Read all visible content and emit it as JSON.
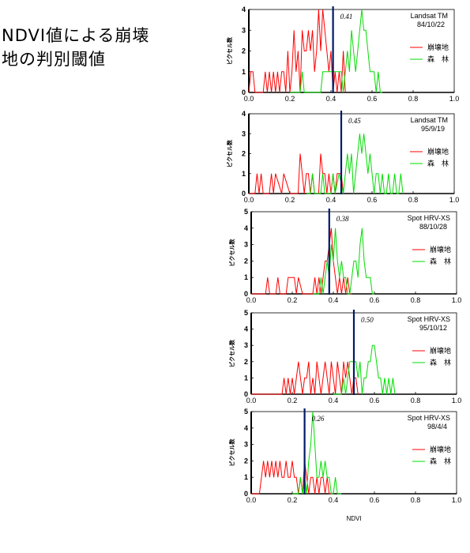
{
  "title_lines": [
    "NDVI値による崩壊",
    "地の判別閾値"
  ],
  "colors": {
    "landslide": "#ff0000",
    "forest": "#00dd00",
    "threshold": "#001a66"
  },
  "chart_data": [
    {
      "type": "line",
      "sensor": "Landsat TM",
      "date": "84/10/22",
      "threshold_label": "0.41",
      "threshold": 0.41,
      "ylabel": "ピクセル数",
      "yticks": [
        "0",
        "1",
        "2",
        "3",
        "4"
      ],
      "ylim": [
        0,
        4
      ],
      "xticks": [
        "0.0",
        "0.2",
        "0.4",
        "0.6",
        "0.8",
        "1.0"
      ],
      "xlim": [
        0,
        1
      ],
      "legend": [
        "崩壊地",
        "森　林"
      ],
      "series": [
        {
          "name": "崩壊地",
          "color": "#ff0000",
          "x": [
            0.0,
            0.01,
            0.02,
            0.03,
            0.04,
            0.05,
            0.06,
            0.07,
            0.08,
            0.09,
            0.1,
            0.11,
            0.12,
            0.13,
            0.14,
            0.15,
            0.16,
            0.17,
            0.18,
            0.19,
            0.2,
            0.21,
            0.22,
            0.23,
            0.24,
            0.25,
            0.26,
            0.27,
            0.28,
            0.29,
            0.3,
            0.31,
            0.32,
            0.33,
            0.34,
            0.35,
            0.36,
            0.37,
            0.38,
            0.39,
            0.4,
            0.41,
            0.42,
            0.43,
            0.44,
            0.45,
            0.46,
            0.47
          ],
          "y": [
            0,
            1,
            1,
            0,
            0,
            0,
            0,
            0,
            1,
            0,
            1,
            0,
            1,
            0,
            1,
            0,
            1,
            1,
            0,
            2,
            0,
            1,
            3,
            1,
            2,
            0,
            3,
            2,
            2,
            3,
            2,
            3,
            1,
            2,
            4,
            2,
            4,
            3,
            2,
            1,
            2,
            0,
            1,
            0,
            1,
            0,
            2,
            0
          ]
        },
        {
          "name": "森　林",
          "color": "#00dd00",
          "x": [
            0.2,
            0.25,
            0.26,
            0.27,
            0.3,
            0.35,
            0.36,
            0.37,
            0.4,
            0.44,
            0.45,
            0.46,
            0.47,
            0.48,
            0.49,
            0.5,
            0.51,
            0.52,
            0.53,
            0.54,
            0.55,
            0.56,
            0.57,
            0.58,
            0.59,
            0.6,
            0.61,
            0.62,
            0.63,
            0.64,
            0.65
          ],
          "y": [
            0,
            0,
            1,
            0,
            0,
            0,
            1,
            1,
            1,
            1,
            1,
            0,
            1,
            2,
            1,
            3,
            2,
            1,
            2,
            3,
            4,
            3,
            3,
            2,
            1,
            1,
            1,
            0,
            1,
            0,
            0
          ]
        }
      ]
    },
    {
      "type": "line",
      "sensor": "Landsat TM",
      "date": "95/9/19",
      "threshold_label": "0.45",
      "threshold": 0.45,
      "ylabel": "ピクセル数",
      "yticks": [
        "0",
        "1",
        "2",
        "3",
        "4"
      ],
      "ylim": [
        0,
        4
      ],
      "xticks": [
        "0.0",
        "0.2",
        "0.4",
        "0.6",
        "0.8",
        "1.0"
      ],
      "xlim": [
        0,
        1
      ],
      "legend": [
        "崩壊地",
        "森　林"
      ],
      "series": [
        {
          "name": "崩壊地",
          "color": "#ff0000",
          "x": [
            0.0,
            0.03,
            0.04,
            0.05,
            0.06,
            0.07,
            0.1,
            0.11,
            0.12,
            0.13,
            0.16,
            0.17,
            0.2,
            0.24,
            0.25,
            0.26,
            0.27,
            0.28,
            0.29,
            0.3,
            0.31,
            0.32,
            0.34,
            0.35,
            0.36,
            0.37,
            0.38,
            0.39,
            0.4,
            0.41,
            0.42,
            0.43,
            0.44,
            0.45,
            0.46
          ],
          "y": [
            0,
            0,
            1,
            0,
            1,
            0,
            0,
            1,
            0,
            1,
            0,
            1,
            0,
            0,
            2,
            1,
            0,
            1,
            1,
            0,
            1,
            0,
            0,
            2,
            1,
            1,
            0,
            1,
            0,
            1,
            0,
            1,
            1,
            1,
            0
          ]
        },
        {
          "name": "森　林",
          "color": "#00dd00",
          "x": [
            0.28,
            0.3,
            0.31,
            0.32,
            0.35,
            0.36,
            0.37,
            0.4,
            0.41,
            0.42,
            0.44,
            0.46,
            0.47,
            0.48,
            0.49,
            0.5,
            0.51,
            0.52,
            0.53,
            0.54,
            0.55,
            0.56,
            0.57,
            0.58,
            0.59,
            0.6,
            0.61,
            0.62,
            0.63,
            0.64,
            0.65,
            0.66,
            0.67,
            0.68,
            0.69,
            0.7,
            0.71,
            0.72,
            0.73,
            0.74,
            0.75
          ],
          "y": [
            0,
            0,
            1,
            0,
            0,
            1,
            0,
            0,
            1,
            0,
            1,
            0,
            1,
            2,
            1,
            2,
            0,
            1,
            2,
            3,
            2,
            3,
            2,
            1,
            2,
            1,
            0,
            1,
            1,
            0,
            1,
            0,
            0,
            1,
            0,
            0,
            1,
            0,
            0,
            1,
            0
          ]
        }
      ]
    },
    {
      "type": "line",
      "sensor": "Spot HRV-XS",
      "date": "88/10/28",
      "threshold_label": "0.38",
      "threshold": 0.38,
      "ylabel": "ピクセル数",
      "yticks": [
        "0",
        "1",
        "2",
        "3",
        "4",
        "5"
      ],
      "ylim": [
        0,
        5
      ],
      "xticks": [
        "0.0",
        "0.2",
        "0.4",
        "0.6",
        "0.8",
        "1.0"
      ],
      "xlim": [
        0,
        1
      ],
      "legend": [
        "崩壊地",
        "森　林"
      ],
      "series": [
        {
          "name": "崩壊地",
          "color": "#ff0000",
          "x": [
            0.0,
            0.07,
            0.08,
            0.09,
            0.12,
            0.13,
            0.14,
            0.17,
            0.18,
            0.19,
            0.21,
            0.22,
            0.23,
            0.25,
            0.3,
            0.31,
            0.32,
            0.33,
            0.34,
            0.35,
            0.36,
            0.37,
            0.38,
            0.39,
            0.4,
            0.41,
            0.42,
            0.43,
            0.44,
            0.45,
            0.46,
            0.47,
            0.48,
            0.49
          ],
          "y": [
            0,
            0,
            1,
            0,
            0,
            1,
            0,
            0,
            1,
            1,
            1,
            0,
            1,
            0,
            0,
            1,
            0,
            1,
            0,
            1,
            2,
            2,
            3,
            4,
            2,
            1,
            0,
            1,
            0,
            1,
            0,
            1,
            0,
            0
          ]
        },
        {
          "name": "森　林",
          "color": "#00dd00",
          "x": [
            0.3,
            0.33,
            0.34,
            0.35,
            0.36,
            0.37,
            0.38,
            0.39,
            0.4,
            0.41,
            0.42,
            0.43,
            0.44,
            0.45,
            0.46,
            0.47,
            0.48,
            0.49,
            0.5,
            0.51,
            0.52,
            0.53,
            0.54,
            0.55,
            0.56,
            0.57,
            0.58,
            0.59,
            0.6
          ],
          "y": [
            0,
            0,
            1,
            0,
            1,
            2,
            1,
            3,
            2,
            4,
            2,
            1,
            2,
            1,
            1,
            0,
            0,
            1,
            2,
            2,
            1,
            3,
            4,
            2,
            1,
            1,
            1,
            0,
            0
          ]
        }
      ]
    },
    {
      "type": "line",
      "sensor": "Spot HRV-XS",
      "date": "95/10/12",
      "threshold_label": "0.50",
      "threshold": 0.5,
      "ylabel": "ピクセル数",
      "yticks": [
        "0",
        "1",
        "2",
        "3",
        "4",
        "5"
      ],
      "ylim": [
        0,
        5
      ],
      "xticks": [
        "0.0",
        "0.2",
        "0.4",
        "0.6",
        "0.8",
        "1.0"
      ],
      "xlim": [
        0,
        1
      ],
      "legend": [
        "崩壊地",
        "森　林"
      ],
      "series": [
        {
          "name": "崩壊地",
          "color": "#ff0000",
          "x": [
            0.0,
            0.15,
            0.16,
            0.17,
            0.18,
            0.19,
            0.2,
            0.21,
            0.22,
            0.23,
            0.24,
            0.25,
            0.26,
            0.27,
            0.28,
            0.29,
            0.3,
            0.31,
            0.32,
            0.33,
            0.34,
            0.35,
            0.36,
            0.37,
            0.38,
            0.39,
            0.4,
            0.41,
            0.42,
            0.43,
            0.44,
            0.45,
            0.46,
            0.47,
            0.48,
            0.49,
            0.5,
            0.51,
            0.52
          ],
          "y": [
            0,
            0,
            1,
            0,
            1,
            0,
            1,
            0,
            1,
            2,
            1,
            0,
            1,
            1,
            2,
            0,
            1,
            0,
            2,
            1,
            0,
            1,
            2,
            1,
            0,
            2,
            1,
            0,
            2,
            1,
            0,
            2,
            1,
            2,
            1,
            0,
            1,
            1,
            0
          ]
        },
        {
          "name": "森　林",
          "color": "#00dd00",
          "x": [
            0.4,
            0.44,
            0.45,
            0.46,
            0.47,
            0.48,
            0.49,
            0.5,
            0.51,
            0.52,
            0.53,
            0.54,
            0.55,
            0.56,
            0.57,
            0.58,
            0.59,
            0.6,
            0.61,
            0.62,
            0.63,
            0.64,
            0.65,
            0.66,
            0.67,
            0.68,
            0.69,
            0.7
          ],
          "y": [
            0,
            0,
            1,
            0,
            1,
            2,
            2,
            2,
            2,
            1,
            2,
            0,
            1,
            1,
            2,
            2,
            3,
            3,
            2,
            1,
            1,
            0,
            1,
            0,
            1,
            0,
            1,
            0
          ]
        }
      ]
    },
    {
      "type": "line",
      "sensor": "Spot HRV-XS",
      "date": "98/4/4",
      "threshold_label": "0.26",
      "threshold": 0.26,
      "ylabel": "ピクセル数",
      "yticks": [
        "0",
        "1",
        "2",
        "3",
        "4",
        "5"
      ],
      "ylim": [
        0,
        5
      ],
      "xticks": [
        "0.0",
        "0.2",
        "0.4",
        "0.6",
        "0.8",
        "1.0"
      ],
      "xlim": [
        0,
        1
      ],
      "legend": [
        "崩壊地",
        "森　林"
      ],
      "series": [
        {
          "name": "崩壊地",
          "color": "#ff0000",
          "x": [
            0.0,
            0.04,
            0.05,
            0.06,
            0.07,
            0.08,
            0.09,
            0.1,
            0.11,
            0.12,
            0.13,
            0.14,
            0.15,
            0.16,
            0.17,
            0.18,
            0.19,
            0.2,
            0.21,
            0.22,
            0.23,
            0.24,
            0.25,
            0.26,
            0.27,
            0.28,
            0.29,
            0.3,
            0.31,
            0.32,
            0.33,
            0.34,
            0.35,
            0.36,
            0.37,
            0.38,
            0.39
          ],
          "y": [
            0,
            0,
            1,
            2,
            1,
            2,
            1,
            2,
            1,
            2,
            1,
            2,
            1,
            1,
            2,
            1,
            1,
            2,
            1,
            1,
            0,
            1,
            0,
            2,
            1,
            0,
            1,
            1,
            0,
            1,
            0,
            1,
            1,
            0,
            1,
            0,
            0
          ]
        },
        {
          "name": "森　林",
          "color": "#00dd00",
          "x": [
            0.2,
            0.23,
            0.24,
            0.25,
            0.26,
            0.27,
            0.28,
            0.29,
            0.3,
            0.31,
            0.32,
            0.33,
            0.34,
            0.35,
            0.36,
            0.37,
            0.38,
            0.39,
            0.4,
            0.41,
            0.42,
            0.43,
            0.44
          ],
          "y": [
            0,
            0,
            1,
            0,
            1,
            0,
            2,
            3,
            5,
            3,
            1,
            1,
            2,
            1,
            2,
            1,
            1,
            0,
            0,
            1,
            0,
            0,
            0
          ]
        }
      ]
    }
  ],
  "shared_xlabel": "NDVI"
}
